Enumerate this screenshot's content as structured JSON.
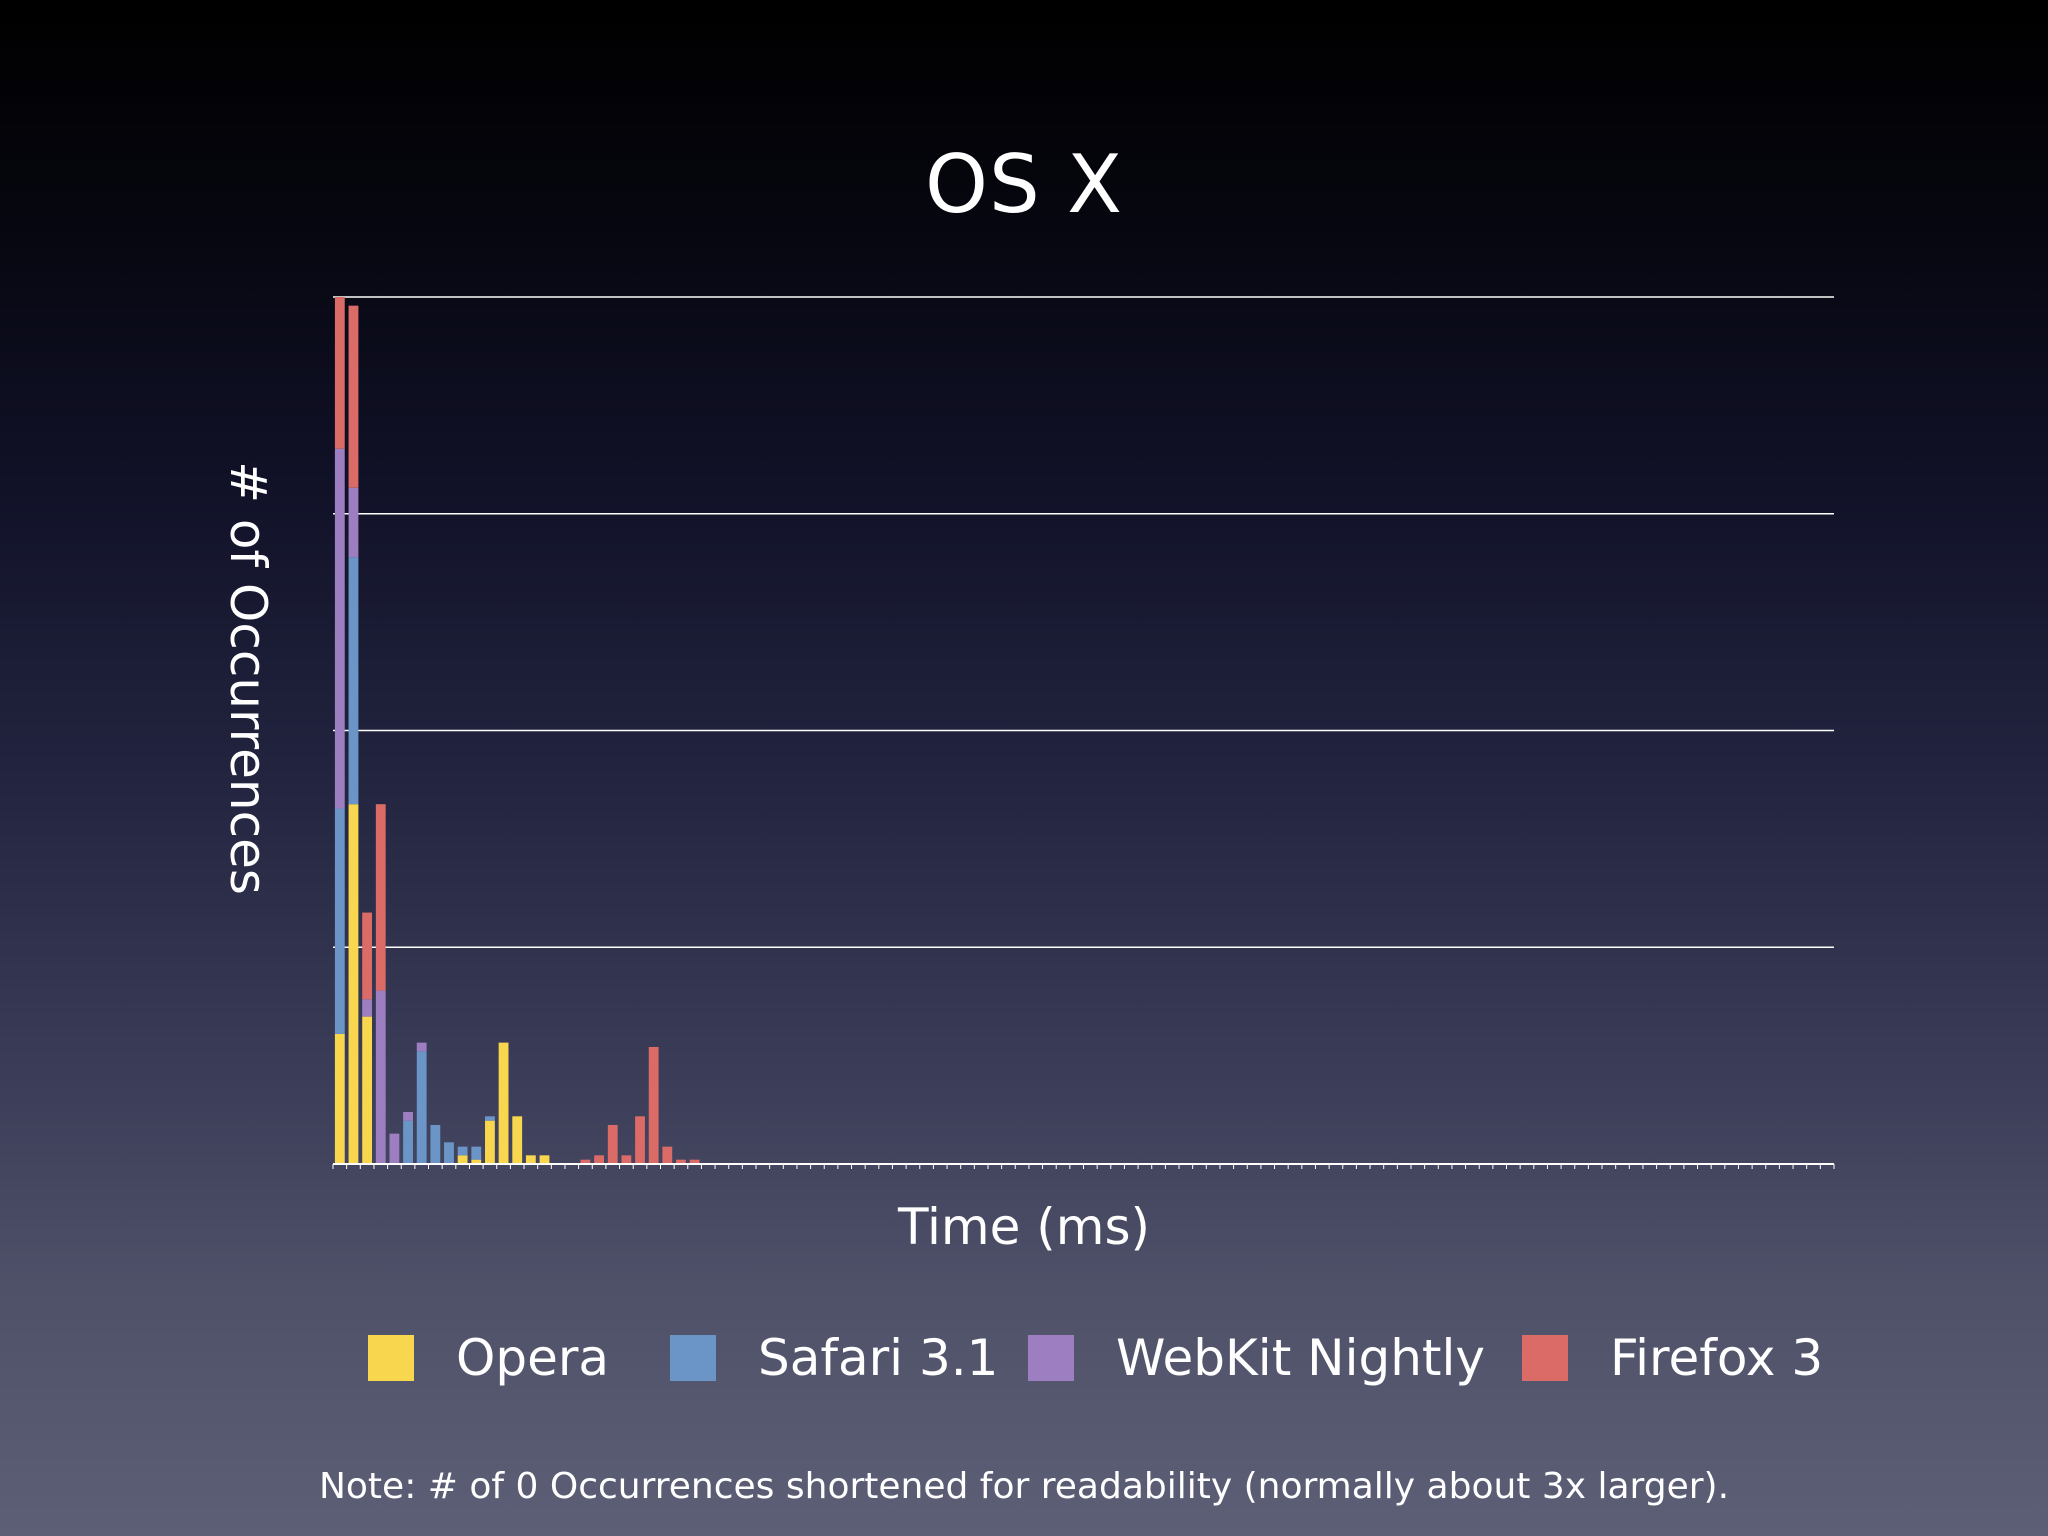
{
  "chart_data": {
    "type": "bar",
    "stacked": true,
    "title": "OS X",
    "xlabel": "Time (ms)",
    "ylabel": "# of Occurrences",
    "ylim": [
      0,
      200
    ],
    "grid": true,
    "legend_placement": "bottom",
    "note": "Note: # of 0 Occurrences shortened for readability (normally about 3x larger).",
    "num_bins": 110,
    "series": [
      {
        "name": "Opera",
        "color": "#f8d64e",
        "values": [
          30,
          83,
          34,
          0,
          0,
          0,
          0,
          0,
          0,
          2,
          1,
          10,
          28,
          11,
          2,
          2,
          0,
          0,
          0,
          0,
          0,
          0,
          0,
          0,
          0,
          0,
          0,
          0,
          0,
          0,
          0,
          0,
          0,
          0,
          0,
          0,
          0,
          0,
          0,
          0,
          0,
          0,
          0,
          0,
          0,
          0,
          0,
          0,
          0,
          0,
          0,
          0,
          0,
          0,
          0,
          0,
          0,
          0,
          0,
          0,
          0,
          0,
          0,
          0,
          0,
          0,
          0,
          0,
          0,
          0,
          0,
          0,
          0,
          0,
          0,
          0,
          0,
          0,
          0,
          0,
          0,
          0,
          0,
          0,
          0,
          0,
          0,
          0,
          0,
          0,
          0,
          0,
          0,
          0,
          0,
          0,
          0,
          0,
          0,
          0,
          0,
          0,
          0,
          0,
          0,
          0,
          0,
          0,
          0,
          0
        ]
      },
      {
        "name": "Safari 3.1",
        "color": "#6b95c6",
        "values": [
          52,
          57,
          0,
          0,
          0,
          10,
          26,
          9,
          5,
          2,
          3,
          1,
          0,
          0,
          0,
          0,
          0,
          0,
          0,
          0,
          0,
          0,
          0,
          0,
          0,
          0,
          0,
          0,
          0,
          0,
          0,
          0,
          0,
          0,
          0,
          0,
          0,
          0,
          0,
          0,
          0,
          0,
          0,
          0,
          0,
          0,
          0,
          0,
          0,
          0,
          0,
          0,
          0,
          0,
          0,
          0,
          0,
          0,
          0,
          0,
          0,
          0,
          0,
          0,
          0,
          0,
          0,
          0,
          0,
          0,
          0,
          0,
          0,
          0,
          0,
          0,
          0,
          0,
          0,
          0,
          0,
          0,
          0,
          0,
          0,
          0,
          0,
          0,
          0,
          0,
          0,
          0,
          0,
          0,
          0,
          0,
          0,
          0,
          0,
          0,
          0,
          0,
          0,
          0,
          0,
          0,
          0,
          0,
          0,
          0
        ]
      },
      {
        "name": "WebKit Nightly",
        "color": "#9d7ec0",
        "values": [
          83,
          16,
          4,
          40,
          7,
          2,
          2,
          0,
          0,
          0,
          0,
          0,
          0,
          0,
          0,
          0,
          0,
          0,
          0,
          0,
          0,
          0,
          0,
          0,
          0,
          0,
          0,
          0,
          0,
          0,
          0,
          0,
          0,
          0,
          0,
          0,
          0,
          0,
          0,
          0,
          0,
          0,
          0,
          0,
          0,
          0,
          0,
          0,
          0,
          0,
          0,
          0,
          0,
          0,
          0,
          0,
          0,
          0,
          0,
          0,
          0,
          0,
          0,
          0,
          0,
          0,
          0,
          0,
          0,
          0,
          0,
          0,
          0,
          0,
          0,
          0,
          0,
          0,
          0,
          0,
          0,
          0,
          0,
          0,
          0,
          0,
          0,
          0,
          0,
          0,
          0,
          0,
          0,
          0,
          0,
          0,
          0,
          0,
          0,
          0,
          0,
          0,
          0,
          0,
          0,
          0,
          0,
          0,
          0,
          0
        ]
      },
      {
        "name": "Firefox 3",
        "color": "#db6b66",
        "values": [
          35,
          42,
          20,
          43,
          0,
          0,
          0,
          0,
          0,
          0,
          0,
          0,
          0,
          0,
          0,
          0,
          0,
          0,
          1,
          2,
          9,
          2,
          11,
          27,
          4,
          1,
          1,
          0,
          0,
          0,
          0,
          0,
          0,
          0,
          0,
          0,
          0,
          0,
          0,
          0,
          0,
          0,
          0,
          0,
          0,
          0,
          0,
          0,
          0,
          0,
          0,
          0,
          0,
          0,
          0,
          0,
          0,
          0,
          0,
          0,
          0,
          0,
          0,
          0,
          0,
          0,
          0,
          0,
          0,
          0,
          0,
          0,
          0,
          0,
          0,
          0,
          0,
          0,
          0,
          0,
          0,
          0,
          0,
          0,
          0,
          0,
          0,
          0,
          0,
          0,
          0,
          0,
          0,
          0,
          0,
          0,
          0,
          0,
          0,
          0,
          0,
          0,
          0,
          0,
          0,
          0,
          0,
          0,
          0,
          0
        ]
      }
    ]
  }
}
